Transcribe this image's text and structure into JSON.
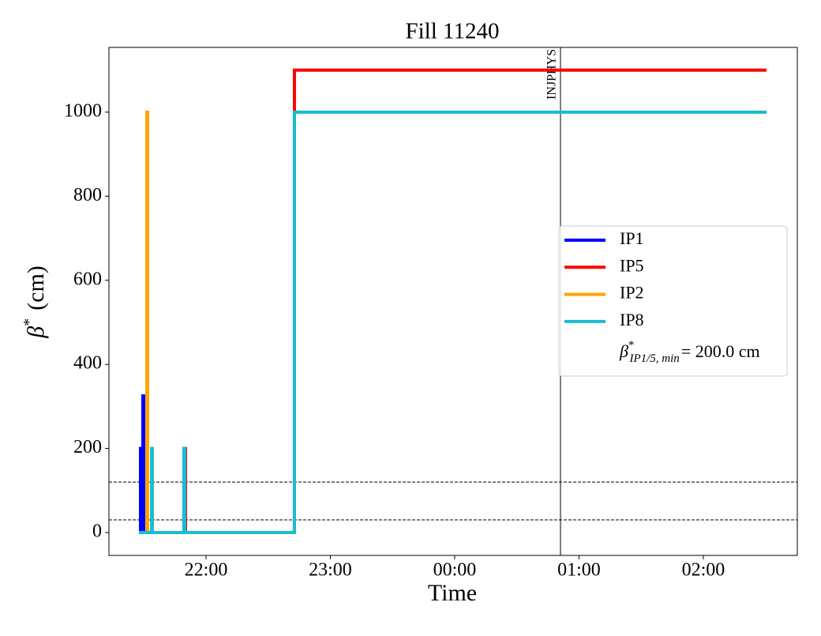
{
  "chart_data": {
    "type": "line",
    "title": "Fill 11240",
    "xlabel": "Time",
    "ylabel": {
      "symbol": "β",
      "sup": "*",
      "text": "(cm)"
    },
    "xlim": [
      21.219,
      26.756
    ],
    "ylim": [
      -54.5,
      1154
    ],
    "xticks": [
      {
        "value": 22,
        "label": "22:00"
      },
      {
        "value": 23,
        "label": "23:00"
      },
      {
        "value": 24,
        "label": "00:00"
      },
      {
        "value": 25,
        "label": "01:00"
      },
      {
        "value": 26,
        "label": "02:00"
      }
    ],
    "yticks": [
      0,
      200,
      400,
      600,
      800,
      1000
    ],
    "series": [
      {
        "name": "IP1",
        "color": "#0000ff",
        "x": [
          21.46,
          21.473,
          21.473,
          21.479,
          21.479,
          21.492,
          21.492,
          21.498,
          21.498,
          22.711,
          22.711,
          26.508
        ],
        "values": [
          0,
          0,
          200,
          200,
          0,
          0,
          325,
          325,
          0,
          0,
          1000,
          1000
        ]
      },
      {
        "name": "IP5",
        "color": "#ff0000",
        "x": [
          21.46,
          21.822,
          21.822,
          21.835,
          21.835,
          22.711,
          22.711,
          26.508
        ],
        "values": [
          0,
          0,
          200,
          200,
          0,
          0,
          1100,
          1100
        ]
      },
      {
        "name": "IP2",
        "color": "#ffa500",
        "x": [
          21.46,
          21.524,
          21.524,
          21.53,
          21.53,
          22.711,
          22.711,
          26.508
        ],
        "values": [
          0,
          0,
          1000,
          1000,
          0,
          0,
          1000,
          1000
        ]
      },
      {
        "name": "IP8",
        "color": "#17becf",
        "x": [
          21.46,
          21.562,
          21.562,
          21.568,
          21.568,
          21.822,
          21.822,
          21.829,
          21.829,
          22.711,
          22.711,
          26.508
        ],
        "values": [
          0,
          0,
          200,
          200,
          0,
          0,
          200,
          200,
          0,
          0,
          1000,
          1000
        ]
      }
    ],
    "hlines": [
      120,
      30
    ],
    "vline": {
      "value": 24.851,
      "label": "INJPHYS"
    },
    "legend_note": {
      "symbol": "β",
      "sup": "*",
      "sub": "IP1/5, min",
      "text": "= 200.0 cm"
    },
    "legend": "center right"
  }
}
